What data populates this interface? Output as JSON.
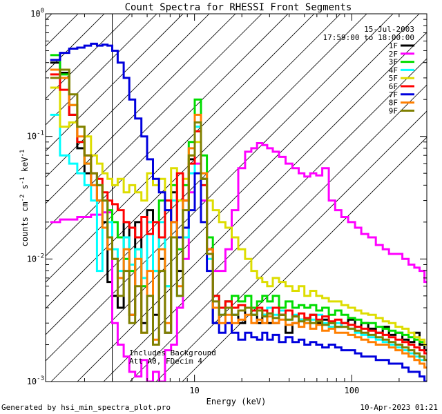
{
  "chart_data": {
    "type": "line",
    "step": true,
    "title": "Count Spectra for RHESSI Front Segments",
    "xlabel": "Energy (keV)",
    "ylabel": "counts cm-2 s-1 keV-1",
    "x_scale": "log",
    "y_scale": "log",
    "xlim": [
      1.13,
      300
    ],
    "ylim": [
      0.001,
      1
    ],
    "x_ticks": [
      {
        "value": 10,
        "label": "10"
      },
      {
        "value": 100,
        "label": "100"
      }
    ],
    "y_ticks": [
      {
        "value": 1,
        "base": "10",
        "exp": "0"
      },
      {
        "value": 0.1,
        "base": "10",
        "exp": "-1"
      },
      {
        "value": 0.01,
        "base": "10",
        "exp": "-2"
      },
      {
        "value": 0.001,
        "base": "10",
        "exp": "-3"
      }
    ],
    "date": "15-Jul-2003",
    "time_range": "17:59:00 to 18:00:00",
    "annotations": [
      "Includes Background",
      "Att A0, FDecim 4"
    ],
    "hatched_region": {
      "x_from": 1.13,
      "x_to": 3.0
    },
    "grid": false,
    "legend_position": "top-right",
    "series": [
      {
        "name": "1F",
        "color": "#000000",
        "x": [
          1.3,
          1.5,
          1.7,
          1.9,
          2.1,
          2.3,
          2.5,
          2.7,
          2.9,
          3.1,
          3.4,
          3.7,
          4.0,
          4.4,
          4.8,
          5.2,
          5.7,
          6.2,
          6.8,
          7.4,
          8.1,
          8.8,
          9.6,
          10.5,
          11.5,
          12.5,
          13.7,
          15.0,
          16.5,
          18.0,
          20,
          22,
          24,
          26,
          28,
          30,
          33,
          36,
          40,
          44,
          48,
          52,
          57,
          62,
          68,
          75,
          82,
          90,
          100,
          110,
          120,
          135,
          150,
          165,
          180,
          200,
          220,
          240,
          260,
          280,
          300
        ],
        "y": [
          0.4,
          0.33,
          0.15,
          0.08,
          0.05,
          0.04,
          0.03,
          0.02,
          0.0065,
          0.005,
          0.004,
          0.02,
          0.0035,
          0.02,
          0.003,
          0.025,
          0.0035,
          0.01,
          0.0025,
          0.035,
          0.008,
          0.03,
          0.065,
          0.12,
          0.045,
          0.012,
          0.003,
          0.004,
          0.0045,
          0.0035,
          0.003,
          0.004,
          0.0035,
          0.003,
          0.0035,
          0.003,
          0.003,
          0.0035,
          0.0025,
          0.003,
          0.0032,
          0.003,
          0.0035,
          0.003,
          0.0032,
          0.003,
          0.0028,
          0.003,
          0.0032,
          0.0028,
          0.003,
          0.0027,
          0.0025,
          0.0028,
          0.0024,
          0.0025,
          0.0022,
          0.0021,
          0.0025,
          0.002,
          0.0018
        ]
      },
      {
        "name": "2F",
        "color": "#ff00ff",
        "x": [
          1.3,
          1.5,
          1.7,
          1.9,
          2.1,
          2.3,
          2.5,
          2.7,
          2.9,
          3.1,
          3.4,
          3.7,
          4.0,
          4.4,
          4.8,
          5.2,
          5.7,
          6.2,
          6.8,
          7.4,
          8.1,
          8.8,
          9.6,
          10.5,
          11.5,
          12.5,
          13.7,
          15.0,
          16.5,
          18.0,
          20,
          22,
          24,
          26,
          28,
          30,
          33,
          36,
          40,
          44,
          48,
          52,
          57,
          62,
          68,
          75,
          82,
          90,
          100,
          110,
          120,
          135,
          150,
          165,
          180,
          200,
          220,
          240,
          260,
          280,
          300
        ],
        "y": [
          0.02,
          0.021,
          0.021,
          0.022,
          0.022,
          0.023,
          0.023,
          0.024,
          0.024,
          0.003,
          0.002,
          0.0016,
          0.0012,
          0.0011,
          0.0015,
          0.001,
          0.0012,
          0.001,
          0.0018,
          0.002,
          0.004,
          0.01,
          0.035,
          0.06,
          0.03,
          0.012,
          0.008,
          0.008,
          0.012,
          0.025,
          0.055,
          0.075,
          0.08,
          0.088,
          0.085,
          0.08,
          0.075,
          0.068,
          0.06,
          0.055,
          0.05,
          0.047,
          0.05,
          0.048,
          0.055,
          0.03,
          0.025,
          0.022,
          0.02,
          0.018,
          0.016,
          0.015,
          0.013,
          0.012,
          0.011,
          0.011,
          0.01,
          0.009,
          0.0085,
          0.008,
          0.0065
        ]
      },
      {
        "name": "3F",
        "color": "#00dd00",
        "x": [
          1.3,
          1.5,
          1.7,
          1.9,
          2.1,
          2.3,
          2.5,
          2.7,
          2.9,
          3.1,
          3.4,
          3.7,
          4.0,
          4.4,
          4.8,
          5.2,
          5.7,
          6.2,
          6.8,
          7.4,
          8.1,
          8.8,
          9.6,
          10.5,
          11.5,
          12.5,
          13.7,
          15.0,
          16.5,
          18.0,
          20,
          22,
          24,
          26,
          28,
          30,
          33,
          36,
          40,
          44,
          48,
          52,
          57,
          62,
          68,
          75,
          82,
          90,
          100,
          110,
          120,
          135,
          150,
          165,
          180,
          200,
          220,
          240,
          260,
          280,
          300
        ],
        "y": [
          0.46,
          0.32,
          0.18,
          0.09,
          0.06,
          0.05,
          0.04,
          0.03,
          0.025,
          0.02,
          0.015,
          0.01,
          0.008,
          0.012,
          0.006,
          0.02,
          0.008,
          0.03,
          0.006,
          0.04,
          0.012,
          0.04,
          0.09,
          0.2,
          0.07,
          0.015,
          0.005,
          0.004,
          0.0045,
          0.005,
          0.0045,
          0.005,
          0.004,
          0.0045,
          0.005,
          0.0045,
          0.005,
          0.004,
          0.0045,
          0.004,
          0.0042,
          0.004,
          0.0042,
          0.0038,
          0.004,
          0.0035,
          0.0038,
          0.0035,
          0.0033,
          0.0032,
          0.003,
          0.003,
          0.0028,
          0.0027,
          0.0026,
          0.0025,
          0.0024,
          0.0023,
          0.0022,
          0.0021,
          0.002
        ]
      },
      {
        "name": "4F",
        "color": "#00ffff",
        "x": [
          1.3,
          1.5,
          1.7,
          1.9,
          2.1,
          2.3,
          2.5,
          2.7,
          2.9,
          3.1,
          3.4,
          3.7,
          4.0,
          4.4,
          4.8,
          5.2,
          5.7,
          6.2,
          6.8,
          7.4,
          8.1,
          8.8,
          9.6,
          10.5,
          11.5,
          12.5,
          13.7,
          15.0,
          16.5,
          18.0,
          20,
          22,
          24,
          26,
          28,
          30,
          33,
          36,
          40,
          44,
          48,
          52,
          57,
          62,
          68,
          75,
          82,
          90,
          100,
          110,
          120,
          135,
          150,
          165,
          180,
          200,
          220,
          240,
          260,
          280,
          300
        ],
        "y": [
          0.15,
          0.07,
          0.06,
          0.05,
          0.04,
          0.03,
          0.008,
          0.03,
          0.02,
          0.012,
          0.008,
          0.015,
          0.009,
          0.012,
          0.007,
          0.02,
          0.008,
          0.02,
          0.006,
          0.03,
          0.005,
          0.015,
          0.05,
          0.12,
          0.04,
          0.01,
          0.004,
          0.0035,
          0.004,
          0.0035,
          0.0038,
          0.004,
          0.0035,
          0.0038,
          0.0035,
          0.004,
          0.0035,
          0.0038,
          0.0032,
          0.0035,
          0.0032,
          0.003,
          0.0032,
          0.0035,
          0.003,
          0.0028,
          0.003,
          0.0028,
          0.0027,
          0.0025,
          0.0024,
          0.0023,
          0.0022,
          0.0021,
          0.002,
          0.0019,
          0.0018,
          0.0017,
          0.0016,
          0.0015,
          0.0015
        ]
      },
      {
        "name": "5F",
        "color": "#dddd00",
        "x": [
          1.3,
          1.5,
          1.7,
          1.9,
          2.1,
          2.3,
          2.5,
          2.7,
          2.9,
          3.1,
          3.4,
          3.7,
          4.0,
          4.4,
          4.8,
          5.2,
          5.7,
          6.2,
          6.8,
          7.4,
          8.1,
          8.8,
          9.6,
          10.5,
          11.5,
          12.5,
          13.7,
          15.0,
          16.5,
          18.0,
          20,
          22,
          24,
          26,
          28,
          30,
          33,
          36,
          40,
          44,
          48,
          52,
          57,
          62,
          68,
          75,
          82,
          90,
          100,
          110,
          120,
          135,
          150,
          165,
          180,
          200,
          220,
          240,
          260,
          280,
          300
        ],
        "y": [
          0.25,
          0.12,
          0.13,
          0.12,
          0.1,
          0.07,
          0.06,
          0.05,
          0.045,
          0.04,
          0.045,
          0.035,
          0.04,
          0.035,
          0.03,
          0.05,
          0.04,
          0.045,
          0.03,
          0.055,
          0.03,
          0.045,
          0.07,
          0.09,
          0.05,
          0.03,
          0.025,
          0.02,
          0.018,
          0.015,
          0.012,
          0.01,
          0.008,
          0.007,
          0.0065,
          0.006,
          0.007,
          0.0065,
          0.006,
          0.0055,
          0.006,
          0.005,
          0.0055,
          0.005,
          0.0048,
          0.0045,
          0.0045,
          0.0042,
          0.004,
          0.0038,
          0.0036,
          0.0035,
          0.0033,
          0.0031,
          0.003,
          0.0028,
          0.0027,
          0.0025,
          0.0023,
          0.0022,
          0.002
        ]
      },
      {
        "name": "6F",
        "color": "#ff0000",
        "x": [
          1.3,
          1.5,
          1.7,
          1.9,
          2.1,
          2.3,
          2.5,
          2.7,
          2.9,
          3.1,
          3.4,
          3.7,
          4.0,
          4.4,
          4.8,
          5.2,
          5.7,
          6.2,
          6.8,
          7.4,
          8.1,
          8.8,
          9.6,
          10.5,
          11.5,
          12.5,
          13.7,
          15.0,
          16.5,
          18.0,
          20,
          22,
          24,
          26,
          28,
          30,
          33,
          36,
          40,
          44,
          48,
          52,
          57,
          62,
          68,
          75,
          82,
          90,
          100,
          110,
          120,
          135,
          150,
          165,
          180,
          200,
          220,
          240,
          260,
          280,
          300
        ],
        "y": [
          0.32,
          0.24,
          0.15,
          0.09,
          0.07,
          0.05,
          0.045,
          0.035,
          0.03,
          0.028,
          0.025,
          0.02,
          0.018,
          0.015,
          0.022,
          0.016,
          0.02,
          0.015,
          0.03,
          0.02,
          0.05,
          0.03,
          0.06,
          0.11,
          0.04,
          0.012,
          0.005,
          0.004,
          0.0045,
          0.004,
          0.0042,
          0.004,
          0.0038,
          0.004,
          0.0038,
          0.0036,
          0.004,
          0.0035,
          0.0038,
          0.0034,
          0.0036,
          0.0033,
          0.0035,
          0.0032,
          0.0034,
          0.0031,
          0.0032,
          0.003,
          0.0029,
          0.0028,
          0.0027,
          0.0026,
          0.0025,
          0.0024,
          0.0023,
          0.0022,
          0.0021,
          0.002,
          0.0019,
          0.0018,
          0.0017
        ]
      },
      {
        "name": "7F",
        "color": "#0000dd",
        "x": [
          1.3,
          1.5,
          1.7,
          1.9,
          2.1,
          2.3,
          2.5,
          2.7,
          2.9,
          3.1,
          3.4,
          3.7,
          4.0,
          4.4,
          4.8,
          5.2,
          5.7,
          6.2,
          6.8,
          7.4,
          8.1,
          8.8,
          9.6,
          10.5,
          11.5,
          12.5,
          13.7,
          15.0,
          16.5,
          18.0,
          20,
          22,
          24,
          26,
          28,
          30,
          33,
          36,
          40,
          44,
          48,
          52,
          57,
          62,
          68,
          75,
          82,
          90,
          100,
          110,
          120,
          135,
          150,
          165,
          180,
          200,
          220,
          240,
          260,
          280,
          300
        ],
        "y": [
          0.42,
          0.48,
          0.52,
          0.53,
          0.55,
          0.57,
          0.55,
          0.56,
          0.55,
          0.5,
          0.4,
          0.3,
          0.2,
          0.14,
          0.1,
          0.065,
          0.045,
          0.035,
          0.025,
          0.02,
          0.015,
          0.018,
          0.025,
          0.05,
          0.02,
          0.008,
          0.003,
          0.0025,
          0.003,
          0.0025,
          0.0022,
          0.0025,
          0.0023,
          0.0022,
          0.0025,
          0.0022,
          0.0024,
          0.0021,
          0.0023,
          0.0021,
          0.0022,
          0.002,
          0.0021,
          0.002,
          0.0019,
          0.002,
          0.0019,
          0.0018,
          0.0018,
          0.0017,
          0.0016,
          0.0016,
          0.0015,
          0.0015,
          0.0014,
          0.0014,
          0.0013,
          0.0012,
          0.0012,
          0.0011,
          0.001
        ]
      },
      {
        "name": "8F",
        "color": "#ff7f00",
        "x": [
          1.3,
          1.5,
          1.7,
          1.9,
          2.1,
          2.3,
          2.5,
          2.7,
          2.9,
          3.1,
          3.4,
          3.7,
          4.0,
          4.4,
          4.8,
          5.2,
          5.7,
          6.2,
          6.8,
          7.4,
          8.1,
          8.8,
          9.6,
          10.5,
          11.5,
          12.5,
          13.7,
          15.0,
          16.5,
          18.0,
          20,
          22,
          24,
          26,
          28,
          30,
          33,
          36,
          40,
          44,
          48,
          52,
          57,
          62,
          68,
          75,
          82,
          90,
          100,
          110,
          120,
          135,
          150,
          165,
          180,
          200,
          220,
          240,
          260,
          280,
          300
        ],
        "y": [
          0.35,
          0.3,
          0.18,
          0.1,
          0.06,
          0.04,
          0.03,
          0.018,
          0.012,
          0.01,
          0.007,
          0.012,
          0.0035,
          0.01,
          0.0025,
          0.008,
          0.0022,
          0.012,
          0.003,
          0.02,
          0.006,
          0.03,
          0.08,
          0.15,
          0.05,
          0.012,
          0.004,
          0.003,
          0.0035,
          0.003,
          0.0032,
          0.0035,
          0.003,
          0.0032,
          0.003,
          0.0034,
          0.003,
          0.0032,
          0.0029,
          0.003,
          0.0028,
          0.003,
          0.0027,
          0.0029,
          0.0026,
          0.0027,
          0.0025,
          0.0025,
          0.0024,
          0.0023,
          0.0022,
          0.0021,
          0.002,
          0.002,
          0.0019,
          0.0018,
          0.0017,
          0.0016,
          0.0015,
          0.0014,
          0.0013
        ]
      },
      {
        "name": "9F",
        "color": "#808000",
        "x": [
          1.3,
          1.5,
          1.7,
          1.9,
          2.1,
          2.3,
          2.5,
          2.7,
          2.9,
          3.1,
          3.4,
          3.7,
          4.0,
          4.4,
          4.8,
          5.2,
          5.7,
          6.2,
          6.8,
          7.4,
          8.1,
          8.8,
          9.6,
          10.5,
          11.5,
          12.5,
          13.7,
          15.0,
          16.5,
          18.0,
          20,
          22,
          24,
          26,
          28,
          30,
          33,
          36,
          40,
          44,
          48,
          52,
          57,
          62,
          68,
          75,
          82,
          90,
          100,
          110,
          120,
          135,
          150,
          165,
          180,
          200,
          220,
          240,
          260,
          280,
          300
        ],
        "y": [
          0.3,
          0.35,
          0.22,
          0.12,
          0.07,
          0.05,
          0.04,
          0.03,
          0.015,
          0.01,
          0.005,
          0.008,
          0.003,
          0.006,
          0.0025,
          0.005,
          0.002,
          0.008,
          0.0025,
          0.015,
          0.005,
          0.025,
          0.07,
          0.13,
          0.045,
          0.011,
          0.0045,
          0.0035,
          0.004,
          0.0035,
          0.0038,
          0.004,
          0.0035,
          0.0038,
          0.0034,
          0.0036,
          0.0033,
          0.0035,
          0.0032,
          0.0034,
          0.0031,
          0.0032,
          0.003,
          0.0031,
          0.0029,
          0.003,
          0.0028,
          0.0028,
          0.0027,
          0.0026,
          0.0025,
          0.0024,
          0.0023,
          0.0022,
          0.0021,
          0.002,
          0.0019,
          0.0018,
          0.0017,
          0.0016,
          0.0015
        ]
      }
    ]
  },
  "footer": {
    "generated_by": "Generated by hsi_min_spectra_plot.pro",
    "timestamp": "10-Apr-2023 01:21"
  }
}
